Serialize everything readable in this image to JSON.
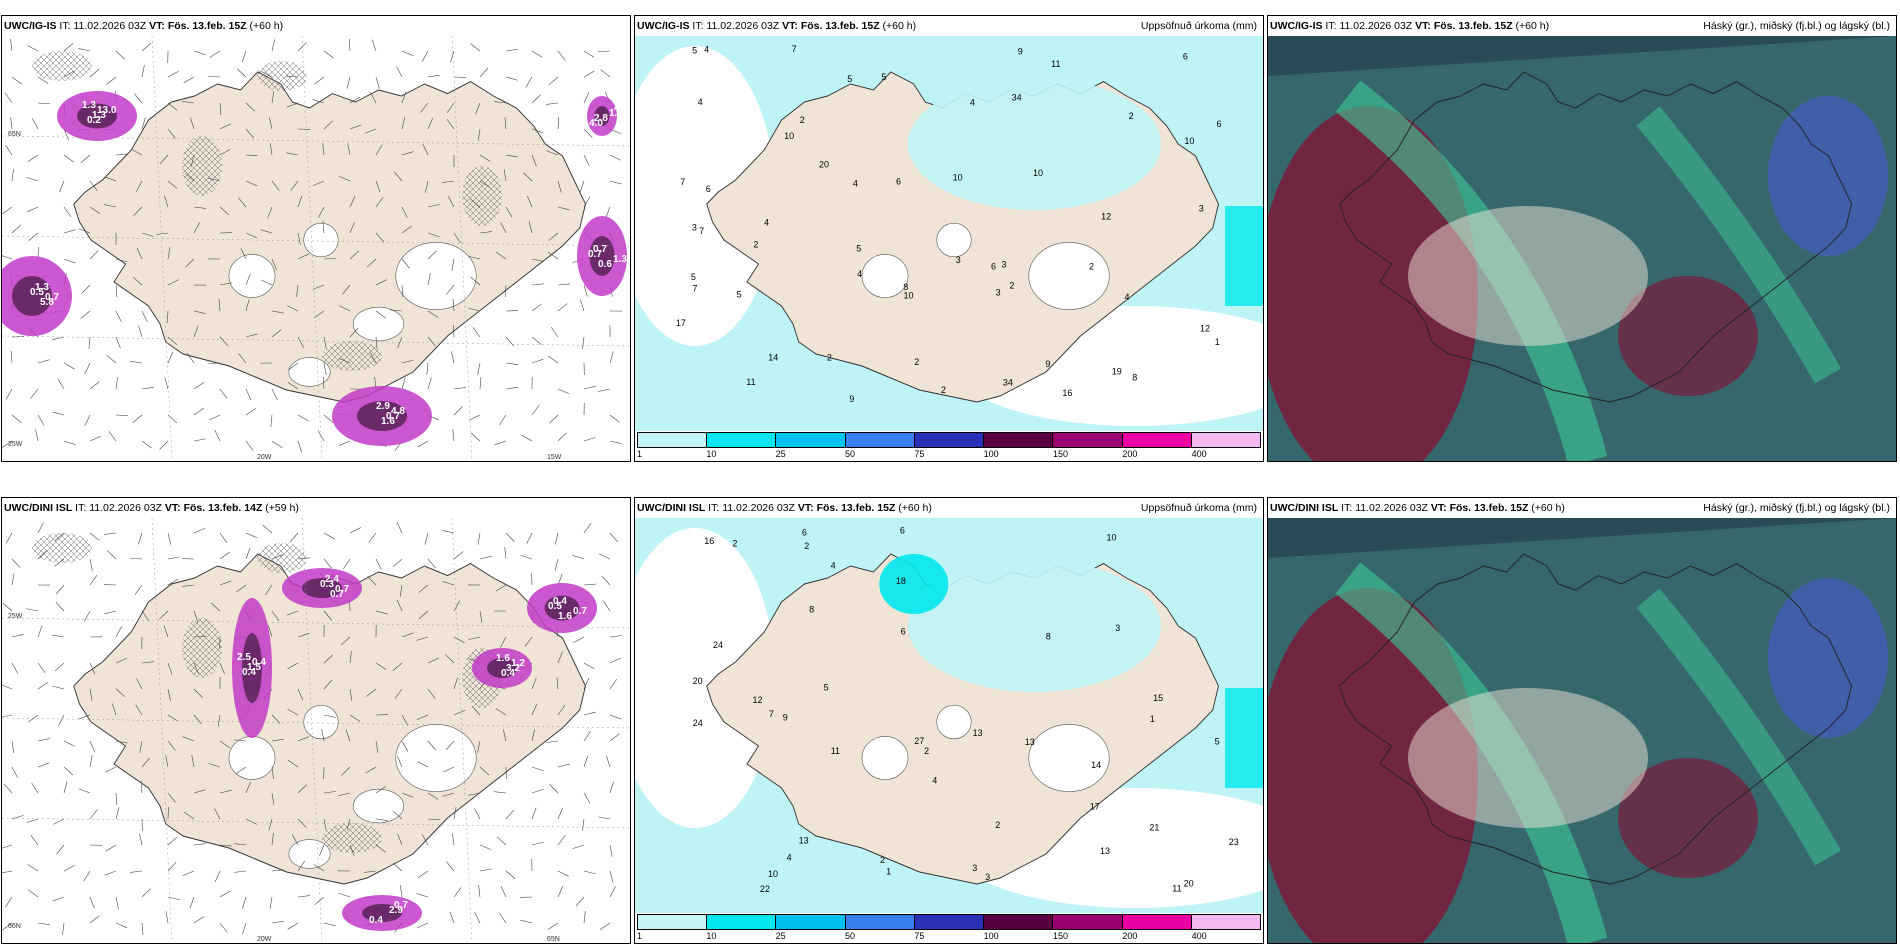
{
  "panels": [
    {
      "id": "p1",
      "model": "UWC/IG-IS",
      "it_label": "IT:",
      "it_value": "11.02.2026 03Z",
      "vt_label": "VT:",
      "vt_value": "Fös. 13.feb. 15Z",
      "lead": "(+60 h)",
      "right_title": "",
      "type": "wind",
      "values": [
        "1.3",
        "0.5",
        "1.3",
        "2.9",
        "1.3",
        "0.2",
        "1.3",
        "0.7",
        "1.6",
        "4.5",
        "1.3",
        "5.8",
        "0.7",
        "0.7",
        "4.0",
        "13.0",
        "0.7",
        "0.6",
        "4.8",
        "2.8"
      ],
      "axis_labels": [
        "20W",
        "15W",
        "65N",
        "25W"
      ]
    },
    {
      "id": "p2",
      "model": "UWC/IG-IS",
      "it_label": "IT:",
      "it_value": "11.02.2026 03Z",
      "vt_label": "VT:",
      "vt_value": "Fös. 13.feb. 15Z",
      "lead": "(+60 h)",
      "right_title": "Uppsöfnuð úrkoma (mm)",
      "type": "precip",
      "values": [
        "2",
        "6",
        "6",
        "3",
        "5",
        "6",
        "12",
        "3",
        "4",
        "10",
        "14",
        "7",
        "5",
        "8",
        "4",
        "12",
        "10",
        "7",
        "9",
        "10",
        "5",
        "6",
        "10",
        "11",
        "5",
        "9",
        "9",
        "7",
        "2",
        "1",
        "3",
        "4",
        "5",
        "4",
        "3",
        "7",
        "16",
        "17",
        "8",
        "2",
        "4",
        "4",
        "6",
        "5",
        "11",
        "20",
        "19",
        "34",
        "2",
        "10",
        "34",
        "2",
        "3",
        "4",
        "2",
        "2",
        "2"
      ],
      "colorbar": [
        "1",
        "10",
        "25",
        "50",
        "75",
        "100",
        "150",
        "200",
        "400"
      ]
    },
    {
      "id": "p3",
      "model": "UWC/IG-IS",
      "it_label": "IT:",
      "it_value": "11.02.2026 03Z",
      "vt_label": "VT:",
      "vt_value": "Fös. 13.feb. 15Z",
      "lead": "(+60 h)",
      "right_title": "Háský (gr.), miðský (fj.bl.) og lágský (bl.)",
      "type": "cloud"
    },
    {
      "id": "p4",
      "model": "UWC/DINI ISL",
      "it_label": "IT:",
      "it_value": "11.02.2026 03Z",
      "vt_label": "VT:",
      "vt_value": "Fös. 13.feb. 14Z",
      "lead": "(+59 h)",
      "right_title": "",
      "type": "wind",
      "values": [
        "2.5",
        "0.3",
        "0.7",
        "1.6",
        "2.9",
        "0.4",
        "2.4",
        "0.5",
        "0.4",
        "0.7",
        "1.5",
        "0.7",
        "0.4",
        "3.2",
        "0.4",
        "0.4",
        "0.7",
        "1.6",
        "1.2"
      ],
      "axis_labels": [
        "20W",
        "65N",
        "25W",
        "66N"
      ]
    },
    {
      "id": "p5",
      "model": "UWC/DINI ISL",
      "it_label": "IT:",
      "it_value": "11.02.2026 03Z",
      "vt_label": "VT:",
      "vt_value": "Fös. 13.feb. 15Z",
      "lead": "(+60 h)",
      "right_title": "Uppsöfnuð úrkoma (mm)",
      "type": "precip",
      "values": [
        "4",
        "3",
        "5",
        "13",
        "24",
        "13",
        "14",
        "8",
        "11",
        "7",
        "6",
        "10",
        "12",
        "11",
        "20",
        "23",
        "24",
        "18",
        "16",
        "10",
        "9",
        "8",
        "13",
        "13",
        "22",
        "17",
        "27",
        "15",
        "21",
        "3",
        "2",
        "4",
        "6",
        "2",
        "2",
        "1",
        "2",
        "2",
        "3",
        "4",
        "1",
        "5",
        "6",
        "20"
      ],
      "colorbar": [
        "1",
        "10",
        "25",
        "50",
        "75",
        "100",
        "150",
        "200",
        "400"
      ]
    },
    {
      "id": "p6",
      "model": "UWC/DINI ISL",
      "it_label": "IT:",
      "it_value": "11.02.2026 03Z",
      "vt_label": "VT:",
      "vt_value": "Fös. 13.feb. 15Z",
      "lead": "(+60 h)",
      "right_title": "Háský (gr.), miðský (fj.bl.) og lágský (bl.)",
      "type": "cloud"
    }
  ],
  "colors": {
    "land": "#efe4d6",
    "sea_precip": "#bff4f6",
    "cb": [
      "#c6f5f8",
      "#00e8ee",
      "#00c2f0",
      "#3a7ff0",
      "#2a30b8",
      "#5a0040",
      "#9a0070",
      "#e800a0",
      "#f3b8f1"
    ],
    "cloud_high": "#3dcc9a",
    "cloud_mid": "#2d5a70",
    "cloud_low": "#7a1a3a"
  }
}
